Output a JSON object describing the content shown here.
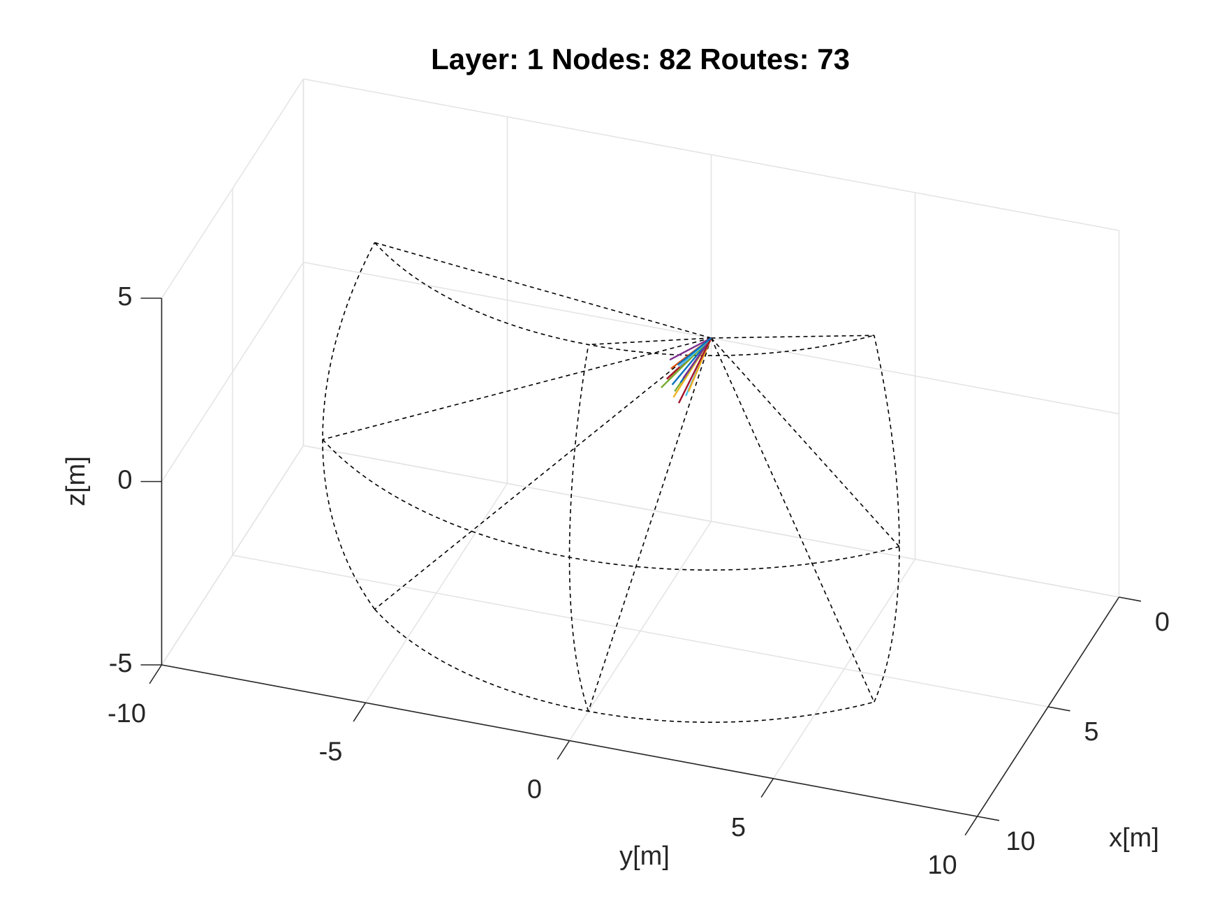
{
  "chart_data": {
    "type": "line3d",
    "title": "Layer: 1 Nodes: 82 Routes: 73",
    "xlabel": "x[m]",
    "ylabel": "y[m]",
    "zlabel": "z[m]",
    "xlim": [
      0,
      10
    ],
    "ylim": [
      -10,
      10
    ],
    "zlim": [
      -5,
      5
    ],
    "xticks": [
      0,
      5,
      10
    ],
    "yticks": [
      -10,
      -5,
      0,
      5,
      10
    ],
    "zticks": [
      -5,
      0,
      5
    ],
    "grid": true,
    "fov": {
      "range": 10,
      "azimuth": [
        -45,
        45
      ],
      "elevation": [
        -30,
        30
      ],
      "color": "#000000"
    },
    "series": [
      {
        "color": "#0072BD",
        "x": [
          0,
          1.6
        ],
        "y": [
          0,
          -0.4
        ],
        "z": [
          0,
          -0.4
        ]
      },
      {
        "color": "#D95319",
        "x": [
          0,
          1.4
        ],
        "y": [
          0,
          -0.5
        ],
        "z": [
          0,
          -0.1
        ]
      },
      {
        "color": "#EDB120",
        "x": [
          0,
          1.8
        ],
        "y": [
          0,
          -0.3
        ],
        "z": [
          0,
          -0.6
        ]
      },
      {
        "color": "#7E2F8E",
        "x": [
          0,
          1.2
        ],
        "y": [
          0,
          -0.6
        ],
        "z": [
          0,
          0
        ]
      },
      {
        "color": "#77AC30",
        "x": [
          0,
          2.0
        ],
        "y": [
          0,
          -0.2
        ],
        "z": [
          0,
          -0.3
        ]
      },
      {
        "color": "#4DBEEE",
        "x": [
          0,
          1.5
        ],
        "y": [
          0,
          -0.1
        ],
        "z": [
          0,
          -0.7
        ]
      },
      {
        "color": "#A2142F",
        "x": [
          0,
          1.7
        ],
        "y": [
          0,
          -0.5
        ],
        "z": [
          0,
          -0.2
        ]
      },
      {
        "color": "#0072BD",
        "x": [
          0,
          1.3
        ],
        "y": [
          0,
          -0.3
        ],
        "z": [
          0,
          -0.5
        ]
      },
      {
        "color": "#D95319",
        "x": [
          0,
          1.9
        ],
        "y": [
          0,
          -0.4
        ],
        "z": [
          0,
          -0.1
        ]
      },
      {
        "color": "#EDB120",
        "x": [
          0,
          1.6
        ],
        "y": [
          0,
          0.0
        ],
        "z": [
          0,
          -0.5
        ]
      },
      {
        "color": "#7E2F8E",
        "x": [
          0,
          1.4
        ],
        "y": [
          0,
          -0.2
        ],
        "z": [
          0,
          -0.3
        ]
      },
      {
        "color": "#77AC30",
        "x": [
          0,
          1.8
        ],
        "y": [
          0,
          -0.6
        ],
        "z": [
          0,
          -0.4
        ]
      },
      {
        "color": "#4DBEEE",
        "x": [
          0,
          1.1
        ],
        "y": [
          0,
          -0.4
        ],
        "z": [
          0,
          -0.2
        ]
      },
      {
        "color": "#A2142F",
        "x": [
          0,
          2.0
        ],
        "y": [
          0,
          -0.1
        ],
        "z": [
          0,
          -0.6
        ]
      },
      {
        "color": "#0072BD",
        "x": [
          0,
          1.5
        ],
        "y": [
          0,
          -0.3
        ],
        "z": [
          0,
          0.1
        ]
      }
    ]
  }
}
